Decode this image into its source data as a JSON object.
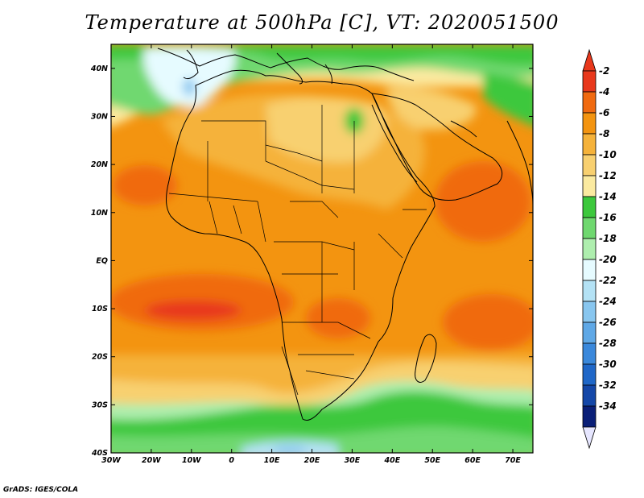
{
  "title": "Temperature at 500hPa [C], VT: 2020051500",
  "credit": "GrADS: IGES/COLA",
  "lon_ticks": [
    "30W",
    "20W",
    "10W",
    "0",
    "10E",
    "20E",
    "30E",
    "40E",
    "50E",
    "60E",
    "70E"
  ],
  "lat_ticks": [
    "40N",
    "30N",
    "20N",
    "10N",
    "EQ",
    "10S",
    "20S",
    "30S",
    "40S"
  ],
  "colorbar": {
    "labels": [
      "-2",
      "-4",
      "-6",
      "-8",
      "-10",
      "-12",
      "-14",
      "-16",
      "-18",
      "-20",
      "-22",
      "-24",
      "-26",
      "-28",
      "-30",
      "-32",
      "-34"
    ],
    "colors": [
      "#e8381c",
      "#f06a10",
      "#f39410",
      "#f5b23a",
      "#f8d070",
      "#fbeaa0",
      "#3cc83c",
      "#6fd86f",
      "#aeeeae",
      "#e6fbff",
      "#b4e2f5",
      "#88c6ef",
      "#5fa8e6",
      "#3a88db",
      "#1f67c8",
      "#1447a8",
      "#0a1f78"
    ],
    "top_arrow_color": "#e8381c",
    "bottom_arrow_color": "#e6e6ff"
  },
  "map": {
    "lon_range": [
      -30,
      75
    ],
    "lat_range": [
      -40,
      45
    ],
    "field_colors": {
      "warm_ocean": "#f06a10",
      "hot": "#e8381c",
      "orange": "#f39410",
      "light_orange": "#f5b23a",
      "tan": "#f8d070",
      "pale_yellow": "#fbeaa0",
      "green": "#3cc83c",
      "mid_green": "#6fd86f",
      "light_green": "#aeeeae",
      "very_light": "#e6fbff",
      "light_blue": "#b4e2f5",
      "blue": "#88c6ef"
    }
  }
}
